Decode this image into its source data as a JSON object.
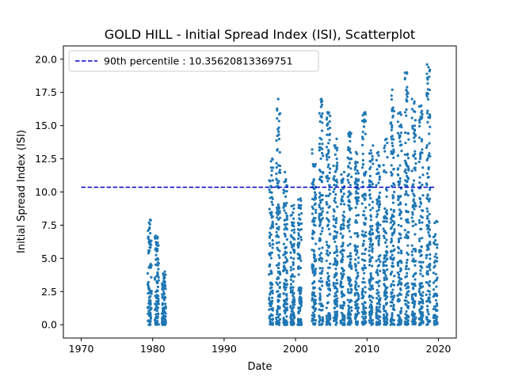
{
  "chart_data": {
    "type": "scatter",
    "title": "GOLD HILL - Initial Spread Index (ISI), Scatterplot",
    "xlabel": "Date",
    "ylabel": "Initial Spread Index (ISI)",
    "xlim": [
      1967.5,
      2022.5
    ],
    "ylim": [
      -1.0,
      21.0
    ],
    "xticks": [
      1970,
      1980,
      1990,
      2000,
      2010,
      2020
    ],
    "yticks": [
      "0.0",
      "2.5",
      "5.0",
      "7.5",
      "10.0",
      "12.5",
      "15.0",
      "17.5",
      "20.0"
    ],
    "legend": {
      "position": "top-left"
    },
    "colors": {
      "points": "#1f77b4",
      "threshold": "#0000cc"
    },
    "reference_line": {
      "label": "90th percentile : 10.35620813369751",
      "y": 10.35620813369751,
      "x_range": [
        1970,
        2019.5
      ],
      "style": "dashed"
    },
    "series": [
      {
        "seasons": [
          {
            "year": 1979,
            "max": 7.9,
            "n": 90
          },
          {
            "year": 1980,
            "max": 6.7,
            "n": 85
          },
          {
            "year": 1981,
            "max": 4.0,
            "n": 95
          },
          {
            "year": 1996,
            "max": 12.5,
            "n": 110
          },
          {
            "year": 1997,
            "max": 17.0,
            "n": 120
          },
          {
            "year": 1998,
            "max": 11.5,
            "n": 115
          },
          {
            "year": 1999,
            "max": 9.0,
            "n": 110
          },
          {
            "year": 2000,
            "max": 9.5,
            "n": 110
          },
          {
            "year": 2002,
            "max": 13.2,
            "n": 120
          },
          {
            "year": 2003,
            "max": 17.0,
            "n": 125
          },
          {
            "year": 2004,
            "max": 16.0,
            "n": 120
          },
          {
            "year": 2005,
            "max": 14.0,
            "n": 120
          },
          {
            "year": 2006,
            "max": 11.5,
            "n": 115
          },
          {
            "year": 2007,
            "max": 14.5,
            "n": 120
          },
          {
            "year": 2008,
            "max": 13.0,
            "n": 120
          },
          {
            "year": 2009,
            "max": 16.0,
            "n": 125
          },
          {
            "year": 2010,
            "max": 13.5,
            "n": 120
          },
          {
            "year": 2011,
            "max": 13.0,
            "n": 120
          },
          {
            "year": 2012,
            "max": 14.0,
            "n": 120
          },
          {
            "year": 2013,
            "max": 17.7,
            "n": 125
          },
          {
            "year": 2014,
            "max": 16.0,
            "n": 125
          },
          {
            "year": 2015,
            "max": 19.0,
            "n": 125
          },
          {
            "year": 2016,
            "max": 17.0,
            "n": 125
          },
          {
            "year": 2017,
            "max": 16.5,
            "n": 125
          },
          {
            "year": 2018,
            "max": 19.6,
            "n": 130
          },
          {
            "year": 2019,
            "max": 7.8,
            "n": 60
          }
        ]
      }
    ]
  }
}
